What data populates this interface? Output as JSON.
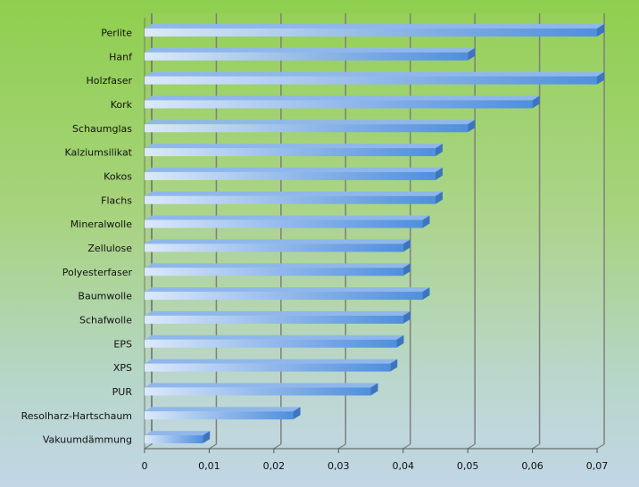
{
  "chart_data": {
    "type": "bar",
    "orientation": "horizontal",
    "categories": [
      "Perlite",
      "Hanf",
      "Holzfaser",
      "Kork",
      "Schaumglas",
      "Kalziumsilikat",
      "Kokos",
      "Flachs",
      "Mineralwolle",
      "Zellulose",
      "Polyesterfaser",
      "Baumwolle",
      "Schafwolle",
      "EPS",
      "XPS",
      "PUR",
      "Resolharz-Hartschaum",
      "Vakuumdämmung"
    ],
    "values": [
      0.07,
      0.05,
      0.07,
      0.06,
      0.05,
      0.045,
      0.045,
      0.045,
      0.043,
      0.04,
      0.04,
      0.043,
      0.04,
      0.039,
      0.038,
      0.035,
      0.023,
      0.009
    ],
    "xlim": [
      0,
      0.07
    ],
    "xticks": [
      "0",
      "0,01",
      "0,02",
      "0,03",
      "0,04",
      "0,05",
      "0,06",
      "0,07"
    ],
    "grid": "vertical",
    "title": "",
    "xlabel": "",
    "ylabel": "",
    "colors": {
      "bar_light": "#dbe9fb",
      "bar_dark": "#4f8fde",
      "bar_top": "#8fb7ec",
      "bar_end": "#3c75bf",
      "gridline": "#7f7f7f",
      "wall": "#d8e8b8"
    }
  }
}
